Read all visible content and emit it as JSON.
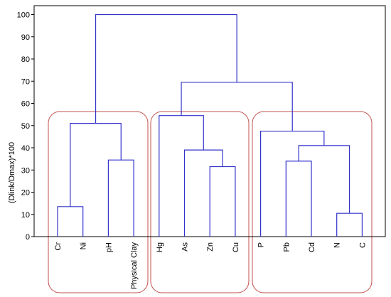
{
  "chart_data": {
    "type": "dendrogram",
    "title": "",
    "xlabel": "",
    "ylabel": "(Dlink/Dmax)*100",
    "ylim": [
      0,
      100
    ],
    "yticks": [
      0,
      10,
      20,
      30,
      40,
      50,
      60,
      70,
      80,
      90,
      100
    ],
    "grid": false,
    "leaves": [
      "Cr",
      "Ni",
      "pH",
      "Physical Clay",
      "Hg",
      "As",
      "Zn",
      "Cu",
      "P",
      "Pb",
      "Cd",
      "N",
      "C"
    ],
    "merges": [
      {
        "left": "Cr",
        "right": "Ni",
        "height": 13.5
      },
      {
        "left": "pH",
        "right": "Physical Clay",
        "height": 34.5
      },
      {
        "left": "Cr+Ni",
        "right": "pH+Physical Clay",
        "height": 51
      },
      {
        "left": "Zn",
        "right": "Cu",
        "height": 31.5
      },
      {
        "left": "As",
        "right": "Zn+Cu",
        "height": 39
      },
      {
        "left": "Hg",
        "right": "As+Zn+Cu",
        "height": 54.5
      },
      {
        "left": "N",
        "right": "C",
        "height": 10.5
      },
      {
        "left": "Pb",
        "right": "Cd",
        "height": 34
      },
      {
        "left": "Pb+Cd",
        "right": "N+C",
        "height": 41
      },
      {
        "left": "P",
        "right": "Pb+Cd+N+C",
        "height": 47.5
      },
      {
        "left": "Hg+As+Zn+Cu",
        "right": "P+Pb+Cd+N+C",
        "height": 69.5
      },
      {
        "left": "Cr+Ni+pH+Physical Clay",
        "right": "Hg+As+Zn+Cu+P+Pb+Cd+N+C",
        "height": 100
      }
    ],
    "cluster_groups": [
      [
        "Cr",
        "Ni",
        "pH",
        "Physical Clay"
      ],
      [
        "Hg",
        "As",
        "Zn",
        "Cu"
      ],
      [
        "P",
        "Pb",
        "Cd",
        "N",
        "C"
      ]
    ],
    "colors": {
      "link": "#3333cc",
      "cluster_outline": "#c0504d",
      "axis": "#000000"
    }
  }
}
